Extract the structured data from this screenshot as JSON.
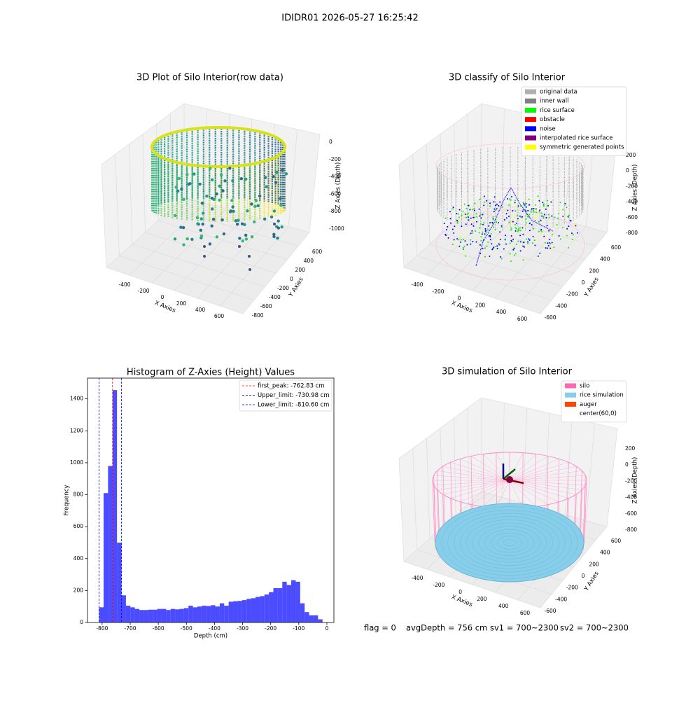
{
  "suptitle": "IDIDR01 2026-05-27 16:25:42",
  "panels": [
    {
      "title": "3D Plot of Silo Interior(row data)",
      "x_label": "X Axies",
      "y_label": "Y Axies",
      "z_label": "Z Axies (Depth)",
      "xticks": [
        -400,
        -200,
        0,
        200,
        400,
        600
      ],
      "yticks": [
        -800,
        -600,
        -400,
        -200,
        0,
        200,
        400,
        600
      ],
      "zticks": [
        0,
        -200,
        -400,
        -600,
        -800,
        -1000
      ],
      "legend": []
    },
    {
      "title": "3D classify of Silo Interior",
      "x_label": "X Axies",
      "y_label": "Y Axies",
      "z_label": "Z Axies (Depth)",
      "xticks": [
        -400,
        -200,
        0,
        200,
        400,
        600
      ],
      "yticks": [
        -600,
        -400,
        -200,
        0,
        200,
        400,
        600
      ],
      "zticks": [
        200,
        0,
        -200,
        -400,
        -600,
        -800
      ],
      "legend": [
        {
          "label": "original data",
          "color": "#b0b0b0"
        },
        {
          "label": "inner wall",
          "color": "#808080"
        },
        {
          "label": "rice surface",
          "color": "#00ff00"
        },
        {
          "label": "obstacle",
          "color": "#ff0000"
        },
        {
          "label": "noise",
          "color": "#0000ff"
        },
        {
          "label": "interpolated rice surface",
          "color": "#800080"
        },
        {
          "label": "symmetric generated points",
          "color": "#ffff00"
        }
      ]
    },
    {
      "title": "3D simulation of Silo Interior",
      "x_label": "X Axies",
      "y_label": "Y Axies",
      "z_label": "Z Axies (Depth)",
      "xticks": [
        -400,
        -200,
        0,
        200,
        400,
        600
      ],
      "yticks": [
        -600,
        -400,
        -200,
        0,
        200,
        400,
        600
      ],
      "zticks": [
        200,
        0,
        -200,
        -400,
        -600,
        -800
      ],
      "legend": [
        {
          "label": "silo",
          "color": "#ff69b4"
        },
        {
          "label": "rice simulation",
          "color": "#87ceeb"
        },
        {
          "label": "auger",
          "color": "#ff4500"
        },
        {
          "label": "center(60,0)",
          "color": "#ffffff"
        }
      ]
    }
  ],
  "status": [
    "flag = 0",
    "avgDepth = 756 cm",
    "sv1 = 700~2300",
    "sv2 = 700~2300"
  ],
  "chart_data": {
    "type": "histogram",
    "title": "Histogram of Z-Axies (Height) Values",
    "x_label": "Depth (cm)",
    "y_label": "Frequency",
    "color": "#0000ff",
    "bins": [
      -810.6,
      -794.7,
      -778.8,
      -762.9,
      -747.0,
      -731.1,
      -715.2,
      -699.3,
      -683.4,
      -667.5,
      -651.6,
      -635.7,
      -619.8,
      -603.9,
      -588.0,
      -572.1,
      -556.2,
      -540.3,
      -524.4,
      -508.5,
      -492.6,
      -476.7,
      -460.8,
      -444.9,
      -429.0,
      -413.1,
      -397.2,
      -381.3,
      -365.4,
      -349.5,
      -333.6,
      -317.7,
      -301.8,
      -285.9,
      -270.0,
      -254.1,
      -238.2,
      -222.3,
      -206.4,
      -190.5,
      -174.6,
      -158.7,
      -142.8,
      -126.9,
      -111.0,
      -95.1,
      -79.2,
      -63.3,
      -47.4,
      -31.5,
      -15.6
    ],
    "values": [
      95,
      810,
      980,
      1455,
      500,
      170,
      105,
      95,
      85,
      78,
      78,
      80,
      80,
      85,
      85,
      78,
      85,
      82,
      85,
      90,
      105,
      95,
      100,
      105,
      103,
      108,
      100,
      120,
      105,
      130,
      133,
      135,
      140,
      148,
      152,
      160,
      165,
      175,
      190,
      215,
      215,
      255,
      235,
      265,
      255,
      120,
      65,
      45,
      45,
      20
    ],
    "xlim": [
      -852,
      25
    ],
    "ylim": [
      0,
      1530
    ],
    "xticks": [
      -800,
      -700,
      -600,
      -500,
      -400,
      -300,
      -200,
      -100,
      0
    ],
    "yticks": [
      0,
      200,
      400,
      600,
      800,
      1000,
      1200,
      1400
    ],
    "lines": [
      {
        "label": "first_peak: -762.83 cm",
        "value": -762.83,
        "color": "#ff0000"
      },
      {
        "label": "Upper_limit: -730.98 cm",
        "value": -730.98,
        "color": "#0000ff"
      },
      {
        "label": "Lower_limit: -810.60 cm",
        "value": -810.6,
        "color": "#0000ff"
      }
    ]
  }
}
